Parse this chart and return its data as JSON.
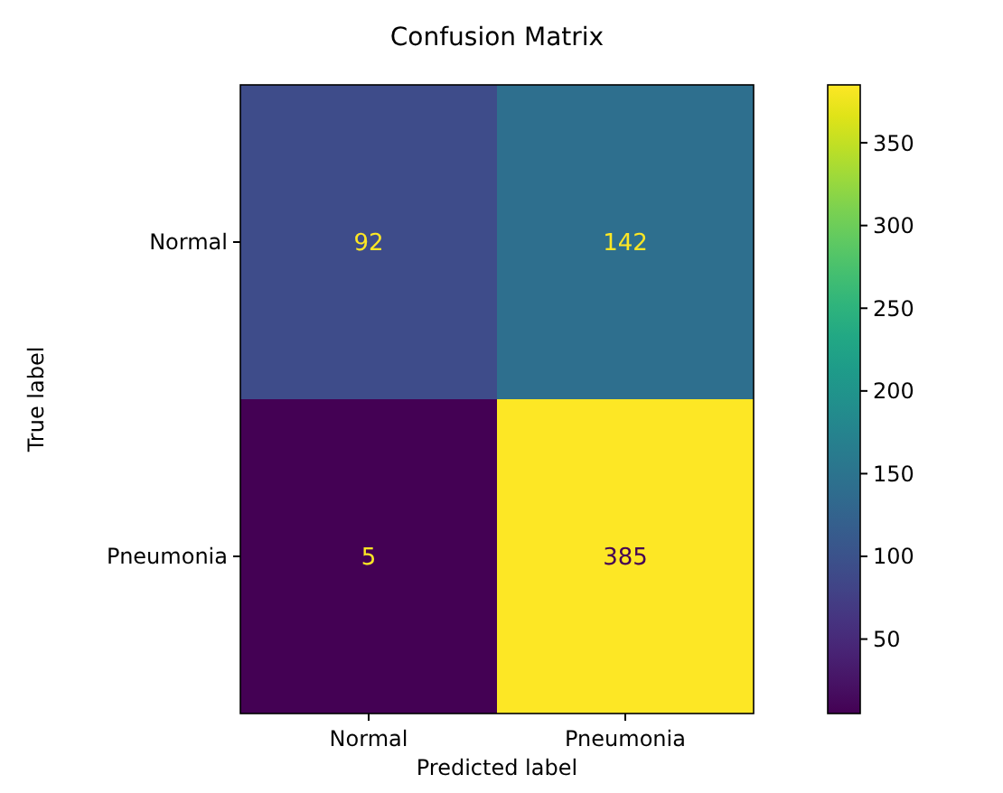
{
  "chart_data": {
    "type": "heatmap",
    "title": "Confusion Matrix",
    "xlabel": "Predicted label",
    "ylabel": "True label",
    "categories": [
      "Normal",
      "Pneumonia"
    ],
    "y_categories": [
      "Normal",
      "Pneumonia"
    ],
    "cells": [
      [
        92,
        142
      ],
      [
        5,
        385
      ]
    ],
    "data_labels": true,
    "clim": [
      5,
      385
    ],
    "cticks": [
      50,
      100,
      150,
      200,
      250,
      300,
      350
    ]
  }
}
